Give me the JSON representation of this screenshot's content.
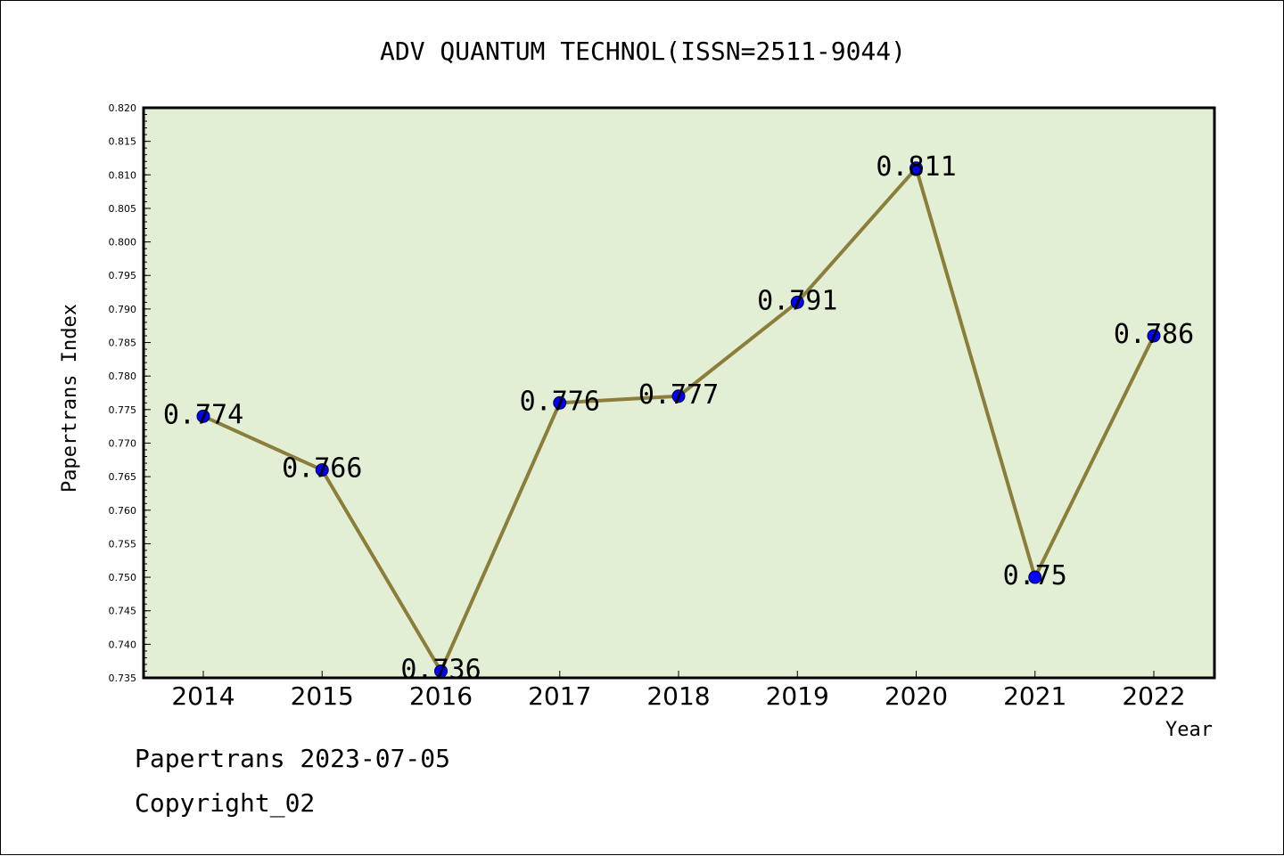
{
  "chart_data": {
    "type": "line",
    "title": "ADV QUANTUM TECHNOL(ISSN=2511-9044)",
    "xlabel": "Year",
    "ylabel": "Papertrans Index",
    "categories": [
      "2014",
      "2015",
      "2016",
      "2017",
      "2018",
      "2019",
      "2020",
      "2021",
      "2022"
    ],
    "series": [
      {
        "values": [
          0.774,
          0.766,
          0.736,
          0.776,
          0.777,
          0.791,
          0.811,
          0.75,
          0.786
        ],
        "labels": [
          "0.774",
          "0.766",
          "0.736",
          "0.776",
          "0.777",
          "0.791",
          "0.811",
          "0.75",
          "0.786"
        ]
      }
    ],
    "ylim": [
      0.735,
      0.82
    ],
    "yticks": [
      "0.735",
      "0.740",
      "0.745",
      "0.750",
      "0.755",
      "0.760",
      "0.765",
      "0.770",
      "0.775",
      "0.780",
      "0.785",
      "0.790",
      "0.795",
      "0.800",
      "0.805",
      "0.810",
      "0.815",
      "0.820"
    ],
    "grid": false,
    "colors": {
      "plot_background": "#e2efd5",
      "line": "#8b7d3a",
      "marker": "#0000ff"
    }
  },
  "footer": {
    "line1": "Papertrans 2023-07-05",
    "line2": "Copyright_02"
  }
}
